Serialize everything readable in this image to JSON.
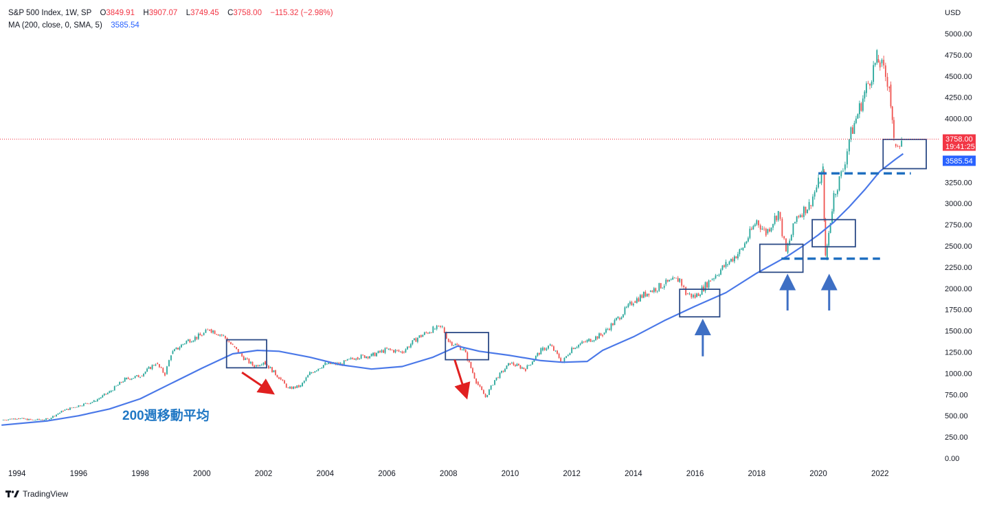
{
  "legend": {
    "symbol": "S&P 500 Index, 1W, SP",
    "o_label": "O",
    "o_value": "3849.91",
    "h_label": "H",
    "h_value": "3907.07",
    "l_label": "L",
    "l_value": "3749.45",
    "c_label": "C",
    "c_value": "3758.00",
    "change": "−115.32 (−2.98%)",
    "ma_label": "MA (200, close, 0, SMA, 5)",
    "ma_value": "3585.54"
  },
  "price_axis": {
    "currency": "USD",
    "last_price_label": "3758.00",
    "countdown_label": "19:41:25",
    "ma_label": "3585.54"
  },
  "annotation_text": "200週移動平均",
  "brand": "TradingView",
  "colors": {
    "price_up": "#26a69a",
    "price_down": "#ef5350",
    "ma_line": "#4a78e8",
    "annotation": "#1f77c4",
    "box": "#2b4a86",
    "red_arrow": "#e02020",
    "blue_arrow": "#3e6fc4",
    "last_price": "#f23645",
    "ma_badge": "#2962ff"
  },
  "chart_data": {
    "type": "line",
    "title": "S&P 500 Index, 1W, SP",
    "xlabel": "",
    "ylabel": "",
    "x_ticks": [
      "1994",
      "1996",
      "1998",
      "2000",
      "2002",
      "2004",
      "2006",
      "2008",
      "2010",
      "2012",
      "2014",
      "2016",
      "2018",
      "2020",
      "2022"
    ],
    "y_ticks": [
      "0.00",
      "250.00",
      "500.00",
      "750.00",
      "1000.00",
      "1250.00",
      "1500.00",
      "1750.00",
      "2000.00",
      "2250.00",
      "2500.00",
      "2750.00",
      "3000.00",
      "3250.00",
      "3500.00",
      "3750.00",
      "4000.00",
      "4250.00",
      "4500.00",
      "4750.00",
      "5000.00"
    ],
    "xlim": [
      1993.45,
      2023.9
    ],
    "ylim": [
      0,
      5000
    ],
    "grid": false,
    "last_close": 3758.0,
    "series": [
      {
        "name": "S&P 500 Index",
        "x": [
          1993.5,
          1994.0,
          1994.5,
          1995.0,
          1995.5,
          1996.0,
          1996.5,
          1997.0,
          1997.5,
          1998.0,
          1998.5,
          1998.8,
          1999.0,
          1999.5,
          2000.0,
          2000.25,
          2000.7,
          2001.0,
          2001.3,
          2001.7,
          2002.0,
          2002.5,
          2002.8,
          2003.2,
          2003.5,
          2004.0,
          2004.5,
          2005.0,
          2005.5,
          2006.0,
          2006.5,
          2007.0,
          2007.5,
          2007.8,
          2008.0,
          2008.5,
          2008.9,
          2009.2,
          2009.5,
          2010.0,
          2010.5,
          2011.0,
          2011.3,
          2011.7,
          2012.0,
          2012.5,
          2013.0,
          2013.5,
          2014.0,
          2014.5,
          2015.0,
          2015.5,
          2015.7,
          2016.0,
          2016.5,
          2017.0,
          2017.5,
          2018.0,
          2018.3,
          2018.7,
          2018.95,
          2019.3,
          2019.7,
          2020.0,
          2020.15,
          2020.23,
          2020.5,
          2020.8,
          2021.0,
          2021.5,
          2021.9,
          2022.0,
          2022.3,
          2022.45,
          2022.7
        ],
        "y": [
          450,
          470,
          450,
          460,
          560,
          620,
          670,
          780,
          930,
          970,
          1120,
          990,
          1230,
          1380,
          1450,
          1520,
          1440,
          1320,
          1200,
          1080,
          1140,
          950,
          820,
          850,
          1000,
          1110,
          1110,
          1190,
          1210,
          1280,
          1250,
          1420,
          1520,
          1540,
          1380,
          1280,
          900,
          720,
          920,
          1120,
          1050,
          1270,
          1330,
          1130,
          1300,
          1380,
          1460,
          1650,
          1850,
          1960,
          2050,
          2110,
          1940,
          1900,
          2100,
          2280,
          2450,
          2800,
          2650,
          2900,
          2420,
          2850,
          2980,
          3240,
          3380,
          2350,
          3100,
          3400,
          3760,
          4300,
          4700,
          4650,
          4400,
          3700,
          3758
        ]
      },
      {
        "name": "MA (200, close, 0, SMA, 5)",
        "x": [
          1993.5,
          1995.0,
          1996.0,
          1997.0,
          1998.0,
          1999.0,
          2000.0,
          2001.0,
          2001.8,
          2002.5,
          2003.5,
          2004.5,
          2005.5,
          2006.5,
          2007.5,
          2008.3,
          2009.0,
          2010.0,
          2011.0,
          2011.7,
          2012.5,
          2013.0,
          2014.0,
          2015.0,
          2016.0,
          2017.0,
          2018.0,
          2019.0,
          2019.5,
          2020.0,
          2020.5,
          2021.0,
          2021.5,
          2022.0,
          2022.5,
          2022.75
        ],
        "y": [
          390,
          440,
          500,
          580,
          700,
          880,
          1060,
          1230,
          1270,
          1260,
          1190,
          1100,
          1050,
          1080,
          1190,
          1320,
          1260,
          1210,
          1150,
          1130,
          1140,
          1270,
          1430,
          1620,
          1790,
          1950,
          2180,
          2380,
          2500,
          2630,
          2780,
          2960,
          3160,
          3380,
          3520,
          3585.54
        ]
      }
    ],
    "annotations": [
      {
        "type": "text",
        "text": "200週移動平均"
      },
      {
        "type": "box",
        "x": [
          2000.8,
          2002.1
        ],
        "y": [
          1065,
          1395
        ]
      },
      {
        "type": "box",
        "x": [
          2007.9,
          2009.3
        ],
        "y": [
          1160,
          1480
        ]
      },
      {
        "type": "box",
        "x": [
          2015.5,
          2016.8
        ],
        "y": [
          1665,
          1990
        ]
      },
      {
        "type": "box",
        "x": [
          2018.1,
          2019.5
        ],
        "y": [
          2190,
          2520
        ]
      },
      {
        "type": "box",
        "x": [
          2019.8,
          2021.2
        ],
        "y": [
          2490,
          2810
        ]
      },
      {
        "type": "box",
        "x": [
          2022.1,
          2023.5
        ],
        "y": [
          3410,
          3755
        ]
      },
      {
        "type": "dashed_level",
        "x": [
          2020.0,
          2023.0
        ],
        "y": 3355
      },
      {
        "type": "dashed_level",
        "x": [
          2018.8,
          2022.0
        ],
        "y": 2350
      },
      {
        "type": "arrow_down",
        "color": "red",
        "from": [
          2001.3,
          1010
        ],
        "to": [
          2002.2,
          790
        ]
      },
      {
        "type": "arrow_down",
        "color": "red",
        "from": [
          2008.2,
          1160
        ],
        "to": [
          2008.55,
          760
        ]
      },
      {
        "type": "arrow_up",
        "color": "blue",
        "x": 2016.25,
        "y_from": 1200,
        "y_to": 1570
      },
      {
        "type": "arrow_up",
        "color": "blue",
        "x": 2019.0,
        "y_from": 1740,
        "y_to": 2100
      },
      {
        "type": "arrow_up",
        "color": "blue",
        "x": 2020.35,
        "y_from": 1740,
        "y_to": 2100
      }
    ]
  }
}
